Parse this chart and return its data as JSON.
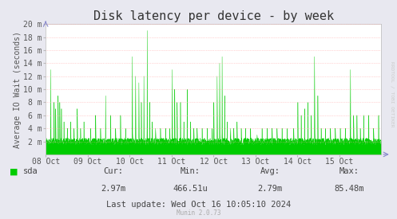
{
  "title": "Disk latency per device - by week",
  "ylabel": "Average IO Wait (seconds)",
  "bg_color": "#e8e8f0",
  "plot_bg_color": "#ffffff",
  "grid_color": "#ff9999",
  "line_color": "#00cc00",
  "fill_color": "#00cc00",
  "ytick_labels": [
    "2 m",
    "4 m",
    "6 m",
    "8 m",
    "10 m",
    "12 m",
    "14 m",
    "16 m",
    "18 m",
    "20 m"
  ],
  "ytick_values": [
    0.002,
    0.004,
    0.006,
    0.008,
    0.01,
    0.012,
    0.014,
    0.016,
    0.018,
    0.02
  ],
  "xtick_labels": [
    "08 Oct",
    "09 Oct",
    "10 Oct",
    "11 Oct",
    "12 Oct",
    "13 Oct",
    "14 Oct",
    "15 Oct"
  ],
  "ylim": [
    0.0,
    0.02
  ],
  "legend_label": "sda",
  "legend_color": "#00cc00",
  "cur_label": "Cur:",
  "cur_val": "2.97m",
  "min_label": "Min:",
  "min_val": "466.51u",
  "avg_label": "Avg:",
  "avg_val": "2.79m",
  "max_label": "Max:",
  "max_val": "85.48m",
  "last_update": "Last update: Wed Oct 16 10:05:10 2024",
  "munin_version": "Munin 2.0.73",
  "watermark": "RRDTOOL / TOBI OETIKER",
  "title_fontsize": 11,
  "axis_fontsize": 7,
  "label_fontsize": 7.5
}
